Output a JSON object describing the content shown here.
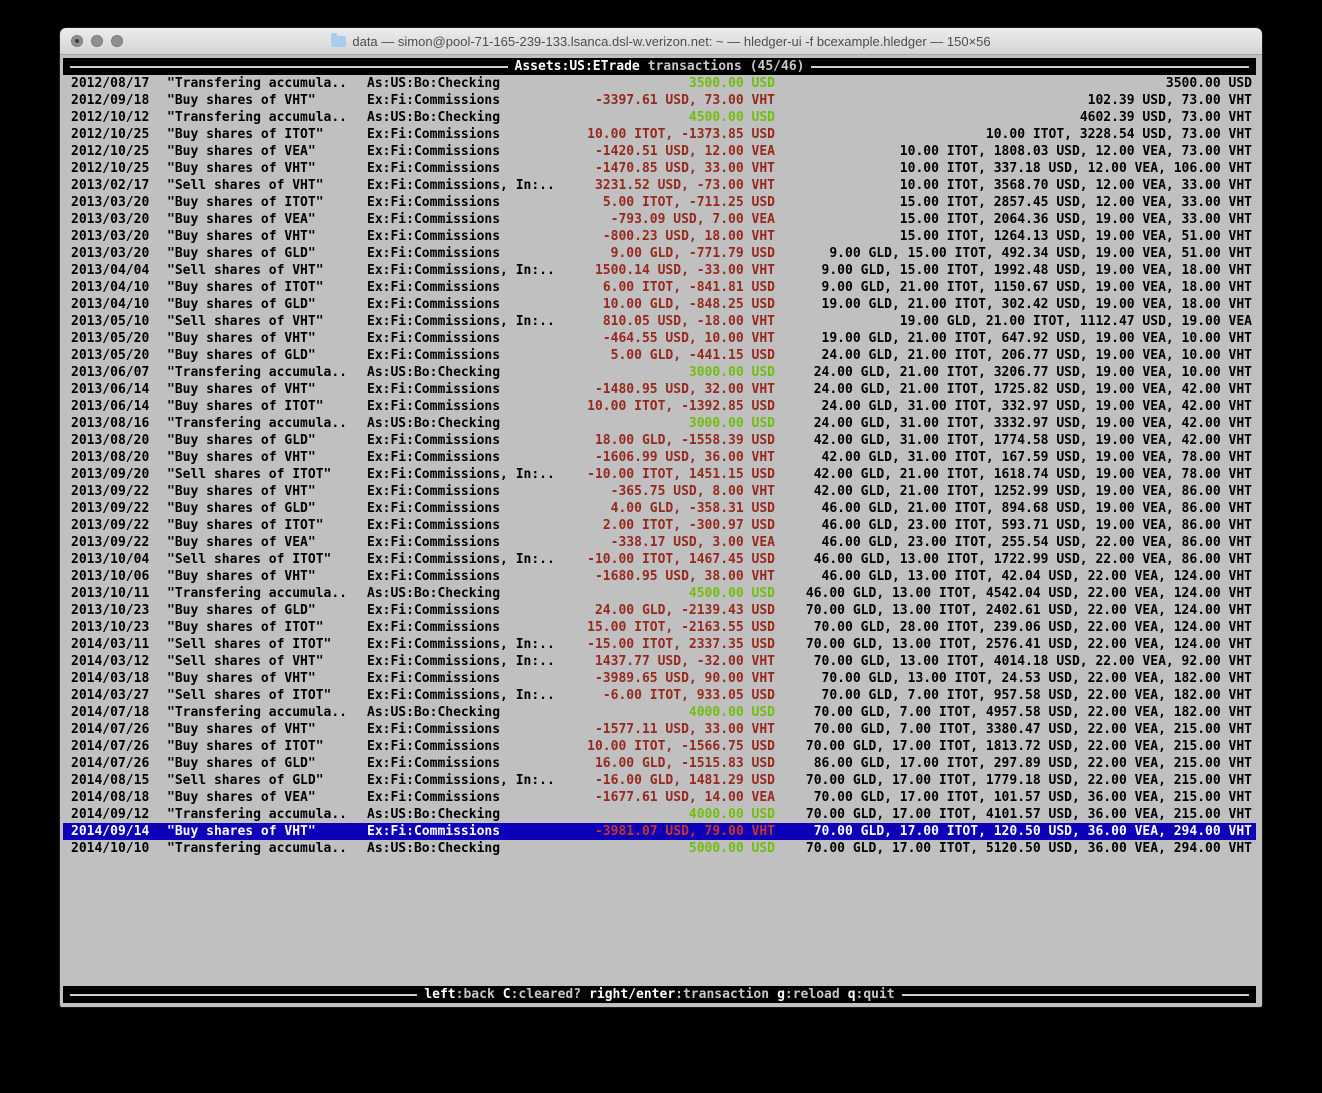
{
  "window": {
    "title": "data — simon@pool-71-165-239-133.lsanca.dsl-w.verizon.net: ~ — hledger-ui -f bcexample.hledger — 150×56"
  },
  "header": {
    "account": "Assets:US:ETrade",
    "label": "transactions",
    "count": "(45/46)"
  },
  "footer": {
    "keys": [
      {
        "key": "left",
        "desc": ":back"
      },
      {
        "key": "C",
        "desc": ":cleared?"
      },
      {
        "key": "right/enter",
        "desc": ":transaction"
      },
      {
        "key": "g",
        "desc": ":reload"
      },
      {
        "key": "q",
        "desc": ":quit"
      }
    ]
  },
  "colors": {
    "terminal_bg": "#c0c0c0",
    "bar_bg": "#000000",
    "positive_green": "#72bd0e",
    "negative_red": "#96281e",
    "selected_bg": "#0d00b8",
    "selected_red": "#c7352a",
    "text": "#000000"
  },
  "register": {
    "rows": [
      {
        "date": "2012/08/17",
        "description": "\"Transfering accumula..",
        "account": "As:US:Bo:Checking",
        "amount": "3500.00 USD",
        "amount_color": "green",
        "balance": "3500.00 USD",
        "selected": false
      },
      {
        "date": "2012/09/18",
        "description": "\"Buy shares of VHT\"",
        "account": "Ex:Fi:Commissions",
        "amount": "-3397.61 USD, 73.00 VHT",
        "amount_color": "red",
        "balance": "102.39 USD, 73.00 VHT",
        "selected": false
      },
      {
        "date": "2012/10/12",
        "description": "\"Transfering accumula..",
        "account": "As:US:Bo:Checking",
        "amount": "4500.00 USD",
        "amount_color": "green",
        "balance": "4602.39 USD, 73.00 VHT",
        "selected": false
      },
      {
        "date": "2012/10/25",
        "description": "\"Buy shares of ITOT\"",
        "account": "Ex:Fi:Commissions",
        "amount": "10.00 ITOT, -1373.85 USD",
        "amount_color": "red",
        "balance": "10.00 ITOT, 3228.54 USD, 73.00 VHT",
        "selected": false
      },
      {
        "date": "2012/10/25",
        "description": "\"Buy shares of VEA\"",
        "account": "Ex:Fi:Commissions",
        "amount": "-1420.51 USD, 12.00 VEA",
        "amount_color": "red",
        "balance": "10.00 ITOT, 1808.03 USD, 12.00 VEA, 73.00 VHT",
        "selected": false
      },
      {
        "date": "2012/10/25",
        "description": "\"Buy shares of VHT\"",
        "account": "Ex:Fi:Commissions",
        "amount": "-1470.85 USD, 33.00 VHT",
        "amount_color": "red",
        "balance": "10.00 ITOT, 337.18 USD, 12.00 VEA, 106.00 VHT",
        "selected": false
      },
      {
        "date": "2013/02/17",
        "description": "\"Sell shares of VHT\"",
        "account": "Ex:Fi:Commissions, In:..",
        "amount": "3231.52 USD, -73.00 VHT",
        "amount_color": "red",
        "balance": "10.00 ITOT, 3568.70 USD, 12.00 VEA, 33.00 VHT",
        "selected": false
      },
      {
        "date": "2013/03/20",
        "description": "\"Buy shares of ITOT\"",
        "account": "Ex:Fi:Commissions",
        "amount": "5.00 ITOT, -711.25 USD",
        "amount_color": "red",
        "balance": "15.00 ITOT, 2857.45 USD, 12.00 VEA, 33.00 VHT",
        "selected": false
      },
      {
        "date": "2013/03/20",
        "description": "\"Buy shares of VEA\"",
        "account": "Ex:Fi:Commissions",
        "amount": "-793.09 USD, 7.00 VEA",
        "amount_color": "red",
        "balance": "15.00 ITOT, 2064.36 USD, 19.00 VEA, 33.00 VHT",
        "selected": false
      },
      {
        "date": "2013/03/20",
        "description": "\"Buy shares of VHT\"",
        "account": "Ex:Fi:Commissions",
        "amount": "-800.23 USD, 18.00 VHT",
        "amount_color": "red",
        "balance": "15.00 ITOT, 1264.13 USD, 19.00 VEA, 51.00 VHT",
        "selected": false
      },
      {
        "date": "2013/03/20",
        "description": "\"Buy shares of GLD\"",
        "account": "Ex:Fi:Commissions",
        "amount": "9.00 GLD, -771.79 USD",
        "amount_color": "red",
        "balance": "9.00 GLD, 15.00 ITOT, 492.34 USD, 19.00 VEA, 51.00 VHT",
        "selected": false
      },
      {
        "date": "2013/04/04",
        "description": "\"Sell shares of VHT\"",
        "account": "Ex:Fi:Commissions, In:..",
        "amount": "1500.14 USD, -33.00 VHT",
        "amount_color": "red",
        "balance": "9.00 GLD, 15.00 ITOT, 1992.48 USD, 19.00 VEA, 18.00 VHT",
        "selected": false
      },
      {
        "date": "2013/04/10",
        "description": "\"Buy shares of ITOT\"",
        "account": "Ex:Fi:Commissions",
        "amount": "6.00 ITOT, -841.81 USD",
        "amount_color": "red",
        "balance": "9.00 GLD, 21.00 ITOT, 1150.67 USD, 19.00 VEA, 18.00 VHT",
        "selected": false
      },
      {
        "date": "2013/04/10",
        "description": "\"Buy shares of GLD\"",
        "account": "Ex:Fi:Commissions",
        "amount": "10.00 GLD, -848.25 USD",
        "amount_color": "red",
        "balance": "19.00 GLD, 21.00 ITOT, 302.42 USD, 19.00 VEA, 18.00 VHT",
        "selected": false
      },
      {
        "date": "2013/05/10",
        "description": "\"Sell shares of VHT\"",
        "account": "Ex:Fi:Commissions, In:..",
        "amount": "810.05 USD, -18.00 VHT",
        "amount_color": "red",
        "balance": "19.00 GLD, 21.00 ITOT, 1112.47 USD, 19.00 VEA",
        "selected": false
      },
      {
        "date": "2013/05/20",
        "description": "\"Buy shares of VHT\"",
        "account": "Ex:Fi:Commissions",
        "amount": "-464.55 USD, 10.00 VHT",
        "amount_color": "red",
        "balance": "19.00 GLD, 21.00 ITOT, 647.92 USD, 19.00 VEA, 10.00 VHT",
        "selected": false
      },
      {
        "date": "2013/05/20",
        "description": "\"Buy shares of GLD\"",
        "account": "Ex:Fi:Commissions",
        "amount": "5.00 GLD, -441.15 USD",
        "amount_color": "red",
        "balance": "24.00 GLD, 21.00 ITOT, 206.77 USD, 19.00 VEA, 10.00 VHT",
        "selected": false
      },
      {
        "date": "2013/06/07",
        "description": "\"Transfering accumula..",
        "account": "As:US:Bo:Checking",
        "amount": "3000.00 USD",
        "amount_color": "green",
        "balance": "24.00 GLD, 21.00 ITOT, 3206.77 USD, 19.00 VEA, 10.00 VHT",
        "selected": false
      },
      {
        "date": "2013/06/14",
        "description": "\"Buy shares of VHT\"",
        "account": "Ex:Fi:Commissions",
        "amount": "-1480.95 USD, 32.00 VHT",
        "amount_color": "red",
        "balance": "24.00 GLD, 21.00 ITOT, 1725.82 USD, 19.00 VEA, 42.00 VHT",
        "selected": false
      },
      {
        "date": "2013/06/14",
        "description": "\"Buy shares of ITOT\"",
        "account": "Ex:Fi:Commissions",
        "amount": "10.00 ITOT, -1392.85 USD",
        "amount_color": "red",
        "balance": "24.00 GLD, 31.00 ITOT, 332.97 USD, 19.00 VEA, 42.00 VHT",
        "selected": false
      },
      {
        "date": "2013/08/16",
        "description": "\"Transfering accumula..",
        "account": "As:US:Bo:Checking",
        "amount": "3000.00 USD",
        "amount_color": "green",
        "balance": "24.00 GLD, 31.00 ITOT, 3332.97 USD, 19.00 VEA, 42.00 VHT",
        "selected": false
      },
      {
        "date": "2013/08/20",
        "description": "\"Buy shares of GLD\"",
        "account": "Ex:Fi:Commissions",
        "amount": "18.00 GLD, -1558.39 USD",
        "amount_color": "red",
        "balance": "42.00 GLD, 31.00 ITOT, 1774.58 USD, 19.00 VEA, 42.00 VHT",
        "selected": false
      },
      {
        "date": "2013/08/20",
        "description": "\"Buy shares of VHT\"",
        "account": "Ex:Fi:Commissions",
        "amount": "-1606.99 USD, 36.00 VHT",
        "amount_color": "red",
        "balance": "42.00 GLD, 31.00 ITOT, 167.59 USD, 19.00 VEA, 78.00 VHT",
        "selected": false
      },
      {
        "date": "2013/09/20",
        "description": "\"Sell shares of ITOT\"",
        "account": "Ex:Fi:Commissions, In:..",
        "amount": "-10.00 ITOT, 1451.15 USD",
        "amount_color": "red",
        "balance": "42.00 GLD, 21.00 ITOT, 1618.74 USD, 19.00 VEA, 78.00 VHT",
        "selected": false
      },
      {
        "date": "2013/09/22",
        "description": "\"Buy shares of VHT\"",
        "account": "Ex:Fi:Commissions",
        "amount": "-365.75 USD, 8.00 VHT",
        "amount_color": "red",
        "balance": "42.00 GLD, 21.00 ITOT, 1252.99 USD, 19.00 VEA, 86.00 VHT",
        "selected": false
      },
      {
        "date": "2013/09/22",
        "description": "\"Buy shares of GLD\"",
        "account": "Ex:Fi:Commissions",
        "amount": "4.00 GLD, -358.31 USD",
        "amount_color": "red",
        "balance": "46.00 GLD, 21.00 ITOT, 894.68 USD, 19.00 VEA, 86.00 VHT",
        "selected": false
      },
      {
        "date": "2013/09/22",
        "description": "\"Buy shares of ITOT\"",
        "account": "Ex:Fi:Commissions",
        "amount": "2.00 ITOT, -300.97 USD",
        "amount_color": "red",
        "balance": "46.00 GLD, 23.00 ITOT, 593.71 USD, 19.00 VEA, 86.00 VHT",
        "selected": false
      },
      {
        "date": "2013/09/22",
        "description": "\"Buy shares of VEA\"",
        "account": "Ex:Fi:Commissions",
        "amount": "-338.17 USD, 3.00 VEA",
        "amount_color": "red",
        "balance": "46.00 GLD, 23.00 ITOT, 255.54 USD, 22.00 VEA, 86.00 VHT",
        "selected": false
      },
      {
        "date": "2013/10/04",
        "description": "\"Sell shares of ITOT\"",
        "account": "Ex:Fi:Commissions, In:..",
        "amount": "-10.00 ITOT, 1467.45 USD",
        "amount_color": "red",
        "balance": "46.00 GLD, 13.00 ITOT, 1722.99 USD, 22.00 VEA, 86.00 VHT",
        "selected": false
      },
      {
        "date": "2013/10/06",
        "description": "\"Buy shares of VHT\"",
        "account": "Ex:Fi:Commissions",
        "amount": "-1680.95 USD, 38.00 VHT",
        "amount_color": "red",
        "balance": "46.00 GLD, 13.00 ITOT, 42.04 USD, 22.00 VEA, 124.00 VHT",
        "selected": false
      },
      {
        "date": "2013/10/11",
        "description": "\"Transfering accumula..",
        "account": "As:US:Bo:Checking",
        "amount": "4500.00 USD",
        "amount_color": "green",
        "balance": "46.00 GLD, 13.00 ITOT, 4542.04 USD, 22.00 VEA, 124.00 VHT",
        "selected": false
      },
      {
        "date": "2013/10/23",
        "description": "\"Buy shares of GLD\"",
        "account": "Ex:Fi:Commissions",
        "amount": "24.00 GLD, -2139.43 USD",
        "amount_color": "red",
        "balance": "70.00 GLD, 13.00 ITOT, 2402.61 USD, 22.00 VEA, 124.00 VHT",
        "selected": false
      },
      {
        "date": "2013/10/23",
        "description": "\"Buy shares of ITOT\"",
        "account": "Ex:Fi:Commissions",
        "amount": "15.00 ITOT, -2163.55 USD",
        "amount_color": "red",
        "balance": "70.00 GLD, 28.00 ITOT, 239.06 USD, 22.00 VEA, 124.00 VHT",
        "selected": false
      },
      {
        "date": "2014/03/11",
        "description": "\"Sell shares of ITOT\"",
        "account": "Ex:Fi:Commissions, In:..",
        "amount": "-15.00 ITOT, 2337.35 USD",
        "amount_color": "red",
        "balance": "70.00 GLD, 13.00 ITOT, 2576.41 USD, 22.00 VEA, 124.00 VHT",
        "selected": false
      },
      {
        "date": "2014/03/12",
        "description": "\"Sell shares of VHT\"",
        "account": "Ex:Fi:Commissions, In:..",
        "amount": "1437.77 USD, -32.00 VHT",
        "amount_color": "red",
        "balance": "70.00 GLD, 13.00 ITOT, 4014.18 USD, 22.00 VEA, 92.00 VHT",
        "selected": false
      },
      {
        "date": "2014/03/18",
        "description": "\"Buy shares of VHT\"",
        "account": "Ex:Fi:Commissions",
        "amount": "-3989.65 USD, 90.00 VHT",
        "amount_color": "red",
        "balance": "70.00 GLD, 13.00 ITOT, 24.53 USD, 22.00 VEA, 182.00 VHT",
        "selected": false
      },
      {
        "date": "2014/03/27",
        "description": "\"Sell shares of ITOT\"",
        "account": "Ex:Fi:Commissions, In:..",
        "amount": "-6.00 ITOT, 933.05 USD",
        "amount_color": "red",
        "balance": "70.00 GLD, 7.00 ITOT, 957.58 USD, 22.00 VEA, 182.00 VHT",
        "selected": false
      },
      {
        "date": "2014/07/18",
        "description": "\"Transfering accumula..",
        "account": "As:US:Bo:Checking",
        "amount": "4000.00 USD",
        "amount_color": "green",
        "balance": "70.00 GLD, 7.00 ITOT, 4957.58 USD, 22.00 VEA, 182.00 VHT",
        "selected": false
      },
      {
        "date": "2014/07/26",
        "description": "\"Buy shares of VHT\"",
        "account": "Ex:Fi:Commissions",
        "amount": "-1577.11 USD, 33.00 VHT",
        "amount_color": "red",
        "balance": "70.00 GLD, 7.00 ITOT, 3380.47 USD, 22.00 VEA, 215.00 VHT",
        "selected": false
      },
      {
        "date": "2014/07/26",
        "description": "\"Buy shares of ITOT\"",
        "account": "Ex:Fi:Commissions",
        "amount": "10.00 ITOT, -1566.75 USD",
        "amount_color": "red",
        "balance": "70.00 GLD, 17.00 ITOT, 1813.72 USD, 22.00 VEA, 215.00 VHT",
        "selected": false
      },
      {
        "date": "2014/07/26",
        "description": "\"Buy shares of GLD\"",
        "account": "Ex:Fi:Commissions",
        "amount": "16.00 GLD, -1515.83 USD",
        "amount_color": "red",
        "balance": "86.00 GLD, 17.00 ITOT, 297.89 USD, 22.00 VEA, 215.00 VHT",
        "selected": false
      },
      {
        "date": "2014/08/15",
        "description": "\"Sell shares of GLD\"",
        "account": "Ex:Fi:Commissions, In:..",
        "amount": "-16.00 GLD, 1481.29 USD",
        "amount_color": "red",
        "balance": "70.00 GLD, 17.00 ITOT, 1779.18 USD, 22.00 VEA, 215.00 VHT",
        "selected": false
      },
      {
        "date": "2014/08/18",
        "description": "\"Buy shares of VEA\"",
        "account": "Ex:Fi:Commissions",
        "amount": "-1677.61 USD, 14.00 VEA",
        "amount_color": "red",
        "balance": "70.00 GLD, 17.00 ITOT, 101.57 USD, 36.00 VEA, 215.00 VHT",
        "selected": false
      },
      {
        "date": "2014/09/12",
        "description": "\"Transfering accumula..",
        "account": "As:US:Bo:Checking",
        "amount": "4000.00 USD",
        "amount_color": "green",
        "balance": "70.00 GLD, 17.00 ITOT, 4101.57 USD, 36.00 VEA, 215.00 VHT",
        "selected": false
      },
      {
        "date": "2014/09/14",
        "description": "\"Buy shares of VHT\"",
        "account": "Ex:Fi:Commissions",
        "amount": "-3981.07 USD, 79.00 VHT",
        "amount_color": "red",
        "balance": "70.00 GLD, 17.00 ITOT, 120.50 USD, 36.00 VEA, 294.00 VHT",
        "selected": true
      },
      {
        "date": "2014/10/10",
        "description": "\"Transfering accumula..",
        "account": "As:US:Bo:Checking",
        "amount": "5000.00 USD",
        "amount_color": "green",
        "balance": "70.00 GLD, 17.00 ITOT, 5120.50 USD, 36.00 VEA, 294.00 VHT",
        "selected": false
      }
    ]
  }
}
